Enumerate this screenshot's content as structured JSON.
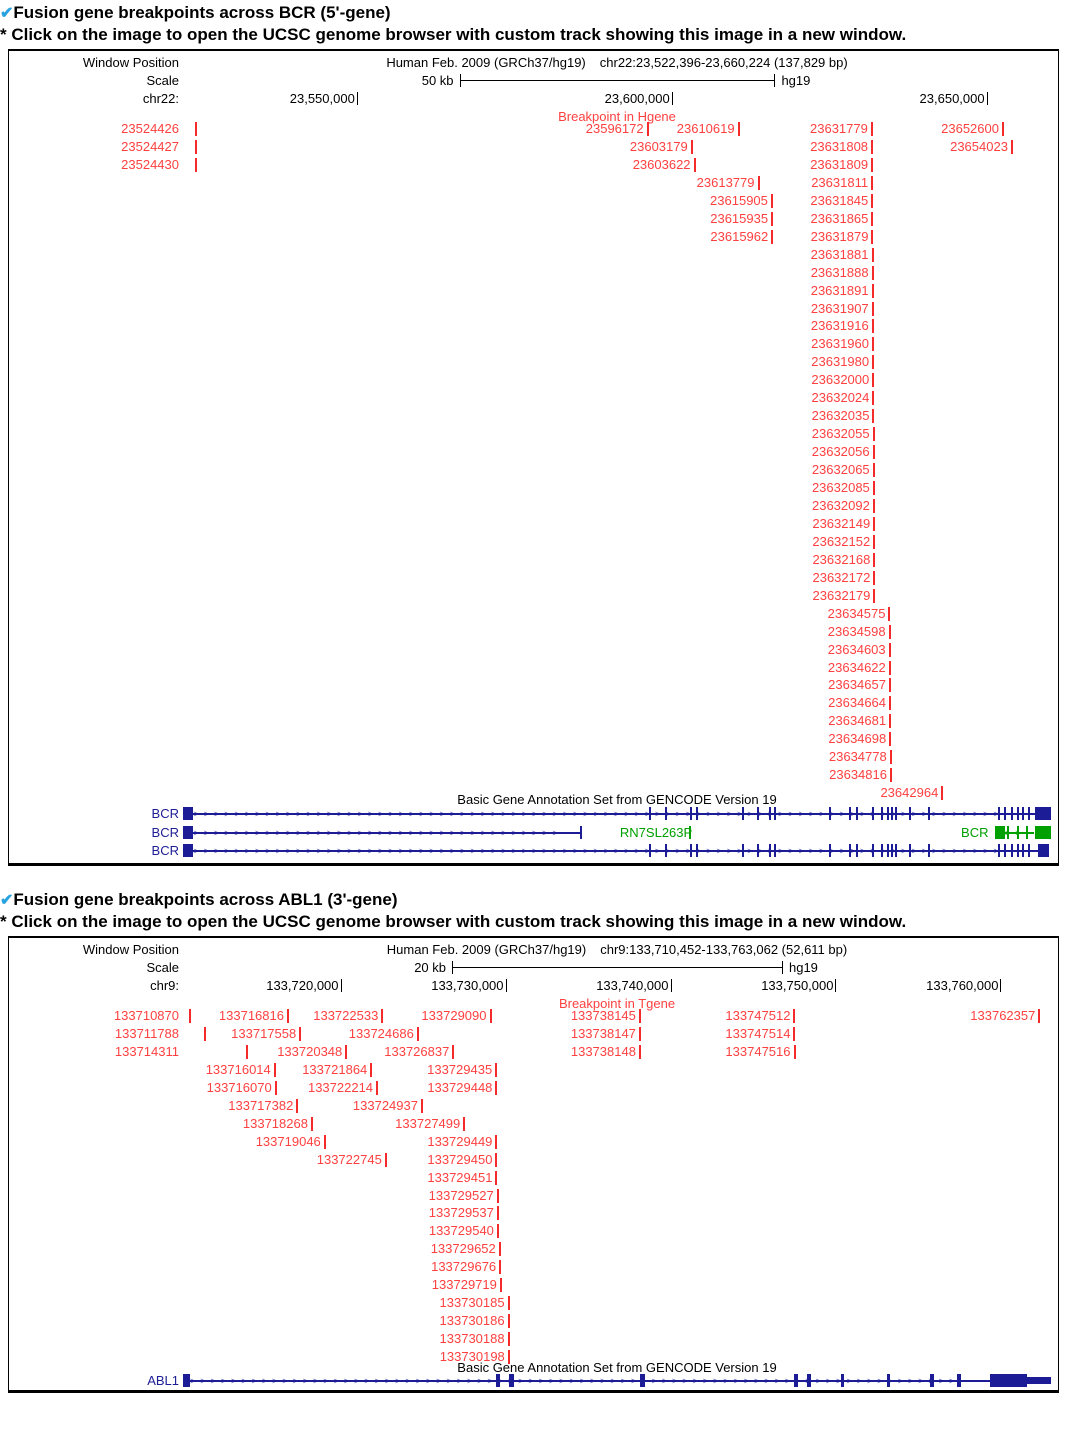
{
  "colors": {
    "breakpoint_red": "#ff4040",
    "gene_blue": "#1c1c96",
    "gene_green": "#00a000",
    "grid_line": "#d6d6f0",
    "window_edge": "#ffb8b0",
    "check_blue": "#29a3e0"
  },
  "sections": [
    {
      "heading_check": "✔",
      "heading": "Fusion gene breakpoints across BCR (5'-gene)",
      "note": "* Click on the image to open the UCSC genome browser with custom track showing this image in a new window."
    },
    {
      "heading_check": "✔",
      "heading": "Fusion gene breakpoints across ABL1 (3'-gene)",
      "note": "* Click on the image to open the UCSC genome browser with custom track showing this image in a new window."
    }
  ],
  "chart_data": [
    {
      "type": "genome-track",
      "window_position_label": "Window Position",
      "title": "Human Feb. 2009 (GRCh37/hg19)",
      "range_text": "chr22:23,522,396-23,660,224 (137,829 bp)",
      "scale_label": "Scale",
      "scale_bar_label": "50 kb",
      "scale_bp": 50000,
      "assembly": "hg19",
      "chrom_label": "chr22:",
      "chrom_start": 23522396,
      "chrom_end": 23660224,
      "axis_ticks": [
        {
          "pos": 23550000,
          "label": "23,550,000"
        },
        {
          "pos": 23600000,
          "label": "23,600,000"
        },
        {
          "pos": 23650000,
          "label": "23,650,000"
        }
      ],
      "breakpoint_title": "Breakpoint in Hgene",
      "breakpoints_outside": [
        {
          "row": 0,
          "pos": 23524426
        },
        {
          "row": 1,
          "pos": 23524427
        },
        {
          "row": 2,
          "pos": 23524430
        }
      ],
      "breakpoints": [
        {
          "row": 0,
          "pos": 23596172
        },
        {
          "row": 0,
          "pos": 23610619
        },
        {
          "row": 0,
          "pos": 23631779
        },
        {
          "row": 0,
          "pos": 23652600
        },
        {
          "row": 1,
          "pos": 23603179
        },
        {
          "row": 1,
          "pos": 23631808
        },
        {
          "row": 1,
          "pos": 23654023
        },
        {
          "row": 2,
          "pos": 23603622
        },
        {
          "row": 2,
          "pos": 23631809
        },
        {
          "row": 3,
          "pos": 23613779
        },
        {
          "row": 3,
          "pos": 23631811
        },
        {
          "row": 4,
          "pos": 23615905
        },
        {
          "row": 4,
          "pos": 23631845
        },
        {
          "row": 5,
          "pos": 23615935
        },
        {
          "row": 5,
          "pos": 23631865
        },
        {
          "row": 6,
          "pos": 23615962
        },
        {
          "row": 6,
          "pos": 23631879
        },
        {
          "row": 7,
          "pos": 23631881
        },
        {
          "row": 8,
          "pos": 23631888
        },
        {
          "row": 9,
          "pos": 23631891
        },
        {
          "row": 10,
          "pos": 23631907
        },
        {
          "row": 11,
          "pos": 23631916
        },
        {
          "row": 12,
          "pos": 23631960
        },
        {
          "row": 13,
          "pos": 23631980
        },
        {
          "row": 14,
          "pos": 23632000
        },
        {
          "row": 15,
          "pos": 23632024
        },
        {
          "row": 16,
          "pos": 23632035
        },
        {
          "row": 17,
          "pos": 23632055
        },
        {
          "row": 18,
          "pos": 23632056
        },
        {
          "row": 19,
          "pos": 23632065
        },
        {
          "row": 20,
          "pos": 23632085
        },
        {
          "row": 21,
          "pos": 23632092
        },
        {
          "row": 22,
          "pos": 23632149
        },
        {
          "row": 23,
          "pos": 23632152
        },
        {
          "row": 24,
          "pos": 23632168
        },
        {
          "row": 25,
          "pos": 23632172
        },
        {
          "row": 26,
          "pos": 23632179
        },
        {
          "row": 27,
          "pos": 23634575
        },
        {
          "row": 28,
          "pos": 23634598
        },
        {
          "row": 29,
          "pos": 23634603
        },
        {
          "row": 30,
          "pos": 23634622
        },
        {
          "row": 31,
          "pos": 23634657
        },
        {
          "row": 32,
          "pos": 23634664
        },
        {
          "row": 33,
          "pos": 23634681
        },
        {
          "row": 34,
          "pos": 23634698
        },
        {
          "row": 35,
          "pos": 23634778
        },
        {
          "row": 36,
          "pos": 23634816
        },
        {
          "row": 37,
          "pos": 23642964
        }
      ],
      "gencode_title": "Basic Gene Annotation Set from GENCODE Version 19",
      "tracks": [
        {
          "label": "BCR",
          "color": "#1c1c96",
          "lines": [
            [
              0.012,
              0.982
            ]
          ],
          "blocks": [
            [
              0.0,
              0.012,
              "tall"
            ],
            [
              0.982,
              1.0,
              "tall"
            ]
          ],
          "ticks": [
            0.538,
            0.556,
            0.585,
            0.592,
            0.645,
            0.662,
            0.676,
            0.682,
            0.745,
            0.768,
            0.777,
            0.795,
            0.805,
            0.812,
            0.817,
            0.822,
            0.837,
            0.86,
            0.94,
            0.947,
            0.955,
            0.962,
            0.968,
            0.975
          ]
        },
        {
          "label": "BCR",
          "color": "#1c1c96",
          "lines": [
            [
              0.012,
              0.458
            ]
          ],
          "blocks": [
            [
              0.0,
              0.012,
              "tall"
            ]
          ],
          "ticks": [
            0.458
          ],
          "extra": {
            "color": "#00a000",
            "texts": [
              {
                "f": 0.545,
                "text": "RN7SL263P",
                "anchor": "mid"
              },
              {
                "f": 0.928,
                "text": "BCR",
                "anchor": "end"
              }
            ],
            "ticks": [
              0.584,
              0.951,
              0.962,
              0.972
            ],
            "blocks": [
              [
                0.935,
                0.947,
                "tall"
              ],
              [
                0.981,
                1.0,
                "tall"
              ]
            ],
            "lines": [
              [
                0.947,
                0.981
              ]
            ]
          }
        },
        {
          "label": "BCR",
          "color": "#1c1c96",
          "lines": [
            [
              0.012,
              0.985
            ]
          ],
          "blocks": [
            [
              0.0,
              0.012,
              "tall"
            ],
            [
              0.985,
              0.998,
              "tall"
            ]
          ],
          "ticks": [
            0.538,
            0.556,
            0.585,
            0.592,
            0.645,
            0.662,
            0.676,
            0.682,
            0.745,
            0.768,
            0.777,
            0.795,
            0.805,
            0.812,
            0.817,
            0.822,
            0.837,
            0.86,
            0.94,
            0.947,
            0.955,
            0.962,
            0.968,
            0.975
          ]
        }
      ]
    },
    {
      "type": "genome-track",
      "window_position_label": "Window Position",
      "title": "Human Feb. 2009 (GRCh37/hg19)",
      "range_text": "chr9:133,710,452-133,763,062 (52,611 bp)",
      "scale_label": "Scale",
      "scale_bar_label": "20 kb",
      "scale_bp": 20000,
      "assembly": "hg19",
      "chrom_label": "chr9:",
      "chrom_start": 133710452,
      "chrom_end": 133763062,
      "axis_ticks": [
        {
          "pos": 133720000,
          "label": "133,720,000"
        },
        {
          "pos": 133730000,
          "label": "133,730,000"
        },
        {
          "pos": 133740000,
          "label": "133,740,000"
        },
        {
          "pos": 133750000,
          "label": "133,750,000"
        },
        {
          "pos": 133760000,
          "label": "133,760,000"
        }
      ],
      "breakpoint_title": "Breakpoint in Tgene",
      "breakpoints_outside": [
        {
          "row": 0,
          "pos": 133710870
        },
        {
          "row": 1,
          "pos": 133711788
        },
        {
          "row": 2,
          "pos": 133714311
        }
      ],
      "breakpoints": [
        {
          "row": 0,
          "pos": 133716816
        },
        {
          "row": 0,
          "pos": 133722533
        },
        {
          "row": 0,
          "pos": 133729090
        },
        {
          "row": 0,
          "pos": 133738145
        },
        {
          "row": 0,
          "pos": 133747512
        },
        {
          "row": 0,
          "pos": 133762357
        },
        {
          "row": 1,
          "pos": 133717558
        },
        {
          "row": 1,
          "pos": 133724686
        },
        {
          "row": 1,
          "pos": 133738147
        },
        {
          "row": 1,
          "pos": 133747514
        },
        {
          "row": 2,
          "pos": 133720348
        },
        {
          "row": 2,
          "pos": 133726837
        },
        {
          "row": 2,
          "pos": 133738148
        },
        {
          "row": 2,
          "pos": 133747516
        },
        {
          "row": 3,
          "pos": 133716014
        },
        {
          "row": 3,
          "pos": 133721864
        },
        {
          "row": 3,
          "pos": 133729435
        },
        {
          "row": 4,
          "pos": 133716070
        },
        {
          "row": 4,
          "pos": 133722214
        },
        {
          "row": 4,
          "pos": 133729448
        },
        {
          "row": 5,
          "pos": 133717382
        },
        {
          "row": 5,
          "pos": 133724937
        },
        {
          "row": 6,
          "pos": 133718268
        },
        {
          "row": 6,
          "pos": 133727499
        },
        {
          "row": 7,
          "pos": 133719046
        },
        {
          "row": 7,
          "pos": 133729449
        },
        {
          "row": 8,
          "pos": 133722745
        },
        {
          "row": 8,
          "pos": 133729450
        },
        {
          "row": 9,
          "pos": 133729451
        },
        {
          "row": 10,
          "pos": 133729527
        },
        {
          "row": 11,
          "pos": 133729537
        },
        {
          "row": 12,
          "pos": 133729540
        },
        {
          "row": 13,
          "pos": 133729652
        },
        {
          "row": 14,
          "pos": 133729676
        },
        {
          "row": 15,
          "pos": 133729719
        },
        {
          "row": 16,
          "pos": 133730185
        },
        {
          "row": 17,
          "pos": 133730186
        },
        {
          "row": 18,
          "pos": 133730188
        },
        {
          "row": 19,
          "pos": 133730198
        }
      ],
      "gencode_title": "Basic Gene Annotation Set from GENCODE Version 19",
      "tracks": [
        {
          "label": "ABL1",
          "color": "#1c1c96",
          "lines": [
            [
              0.008,
              0.93
            ]
          ],
          "blocks": [
            [
              0.0,
              0.008,
              "tall"
            ],
            [
              0.361,
              0.365,
              "tall"
            ],
            [
              0.375,
              0.381,
              "tall"
            ],
            [
              0.526,
              0.532,
              "tall"
            ],
            [
              0.704,
              0.708,
              "tall"
            ],
            [
              0.719,
              0.723,
              "tall"
            ],
            [
              0.758,
              0.762,
              "tall"
            ],
            [
              0.811,
              0.815,
              "tall"
            ],
            [
              0.861,
              0.865,
              "tall"
            ],
            [
              0.892,
              0.896,
              "tall"
            ],
            [
              0.93,
              0.972,
              "tall"
            ],
            [
              0.972,
              1.0,
              "half"
            ]
          ],
          "ticks": []
        }
      ]
    }
  ]
}
